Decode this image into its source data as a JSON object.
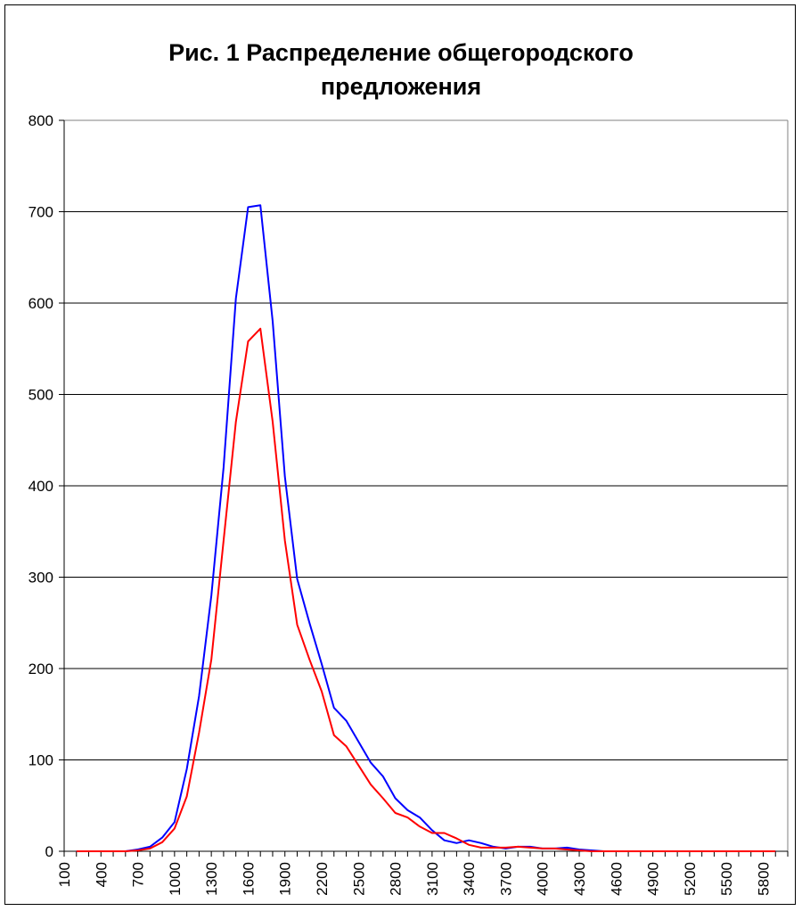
{
  "chart_data": {
    "type": "line",
    "title": "Рис. 1 Распределение общегородского\nпредложения",
    "xlabel": "",
    "ylabel": "",
    "ylim": [
      0,
      800
    ],
    "yticks": [
      0,
      100,
      200,
      300,
      400,
      500,
      600,
      700,
      800
    ],
    "xlim": [
      100,
      6000
    ],
    "xtick_labels": [
      "100",
      "400",
      "700",
      "1000",
      "1300",
      "1600",
      "1900",
      "2200",
      "2500",
      "2800",
      "3100",
      "3400",
      "3700",
      "4000",
      "4300",
      "4600",
      "4900",
      "5200",
      "5500",
      "5800"
    ],
    "grid": true,
    "legend": false,
    "x": [
      200,
      300,
      400,
      500,
      600,
      700,
      800,
      900,
      1000,
      1100,
      1200,
      1300,
      1400,
      1500,
      1600,
      1700,
      1800,
      1900,
      2000,
      2100,
      2200,
      2300,
      2400,
      2500,
      2600,
      2700,
      2800,
      2900,
      3000,
      3100,
      3200,
      3300,
      3400,
      3500,
      3600,
      3700,
      3800,
      3900,
      4000,
      4100,
      4200,
      4300,
      4400,
      4500,
      4600,
      4700,
      4800,
      4900,
      5000,
      5100,
      5200,
      5300,
      5400,
      5500,
      5600,
      5700,
      5800,
      5900
    ],
    "series": [
      {
        "color": "#0000ff",
        "values": [
          0,
          0,
          0,
          0,
          0,
          2,
          5,
          15,
          32,
          90,
          170,
          280,
          420,
          605,
          705,
          707,
          580,
          410,
          298,
          250,
          205,
          157,
          143,
          120,
          97,
          82,
          58,
          45,
          37,
          23,
          12,
          9,
          12,
          9,
          5,
          3,
          5,
          5,
          3,
          3,
          4,
          2,
          1,
          0,
          0,
          0,
          0,
          0,
          0,
          0,
          0,
          0,
          0,
          0,
          0,
          0,
          0,
          0
        ]
      },
      {
        "color": "#ff0000",
        "values": [
          0,
          0,
          0,
          0,
          0,
          1,
          3,
          10,
          25,
          60,
          130,
          210,
          340,
          470,
          558,
          572,
          470,
          340,
          248,
          210,
          175,
          127,
          115,
          94,
          73,
          58,
          42,
          37,
          27,
          20,
          20,
          14,
          7,
          4,
          4,
          4,
          5,
          4,
          3,
          3,
          2,
          1,
          0,
          0,
          0,
          0,
          0,
          0,
          0,
          0,
          0,
          0,
          0,
          0,
          0,
          0,
          0,
          0
        ]
      }
    ]
  }
}
